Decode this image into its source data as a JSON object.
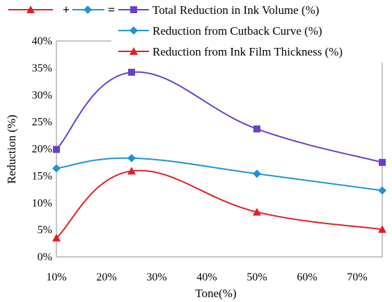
{
  "chart_data": {
    "type": "line",
    "title": "",
    "xlabel": "Tone(%)",
    "ylabel": "Reduction (%)",
    "x": [
      10,
      25,
      50,
      75
    ],
    "xlim": [
      10,
      75
    ],
    "xticks": [
      10,
      20,
      30,
      40,
      50,
      60,
      70
    ],
    "xtick_labels": [
      "10%",
      "20%",
      "30%",
      "40%",
      "50%",
      "60%",
      "70%"
    ],
    "ylim": [
      0,
      40
    ],
    "yticks": [
      0,
      5,
      10,
      15,
      20,
      25,
      30,
      35,
      40
    ],
    "ytick_labels": [
      "0%",
      "5%",
      "10%",
      "15%",
      "20%",
      "25%",
      "30%",
      "35%",
      "40%"
    ],
    "grid": false,
    "legend_position": "top",
    "legend_equation_symbols": [
      "+",
      "="
    ],
    "series": [
      {
        "name": "Total Reduction in Ink Volume (%)",
        "color": "#6a3fc7",
        "marker": "square",
        "values": [
          19.9,
          34.2,
          23.7,
          17.5
        ]
      },
      {
        "name": "Reduction from Cutback Curve (%)",
        "color": "#1f93d6",
        "marker": "diamond",
        "values": [
          16.4,
          18.3,
          15.4,
          12.3
        ]
      },
      {
        "name": "Reduction from Ink Film Thickness (%)",
        "color": "#e01e26",
        "marker": "triangle",
        "values": [
          3.5,
          15.9,
          8.3,
          5.1
        ]
      }
    ]
  }
}
